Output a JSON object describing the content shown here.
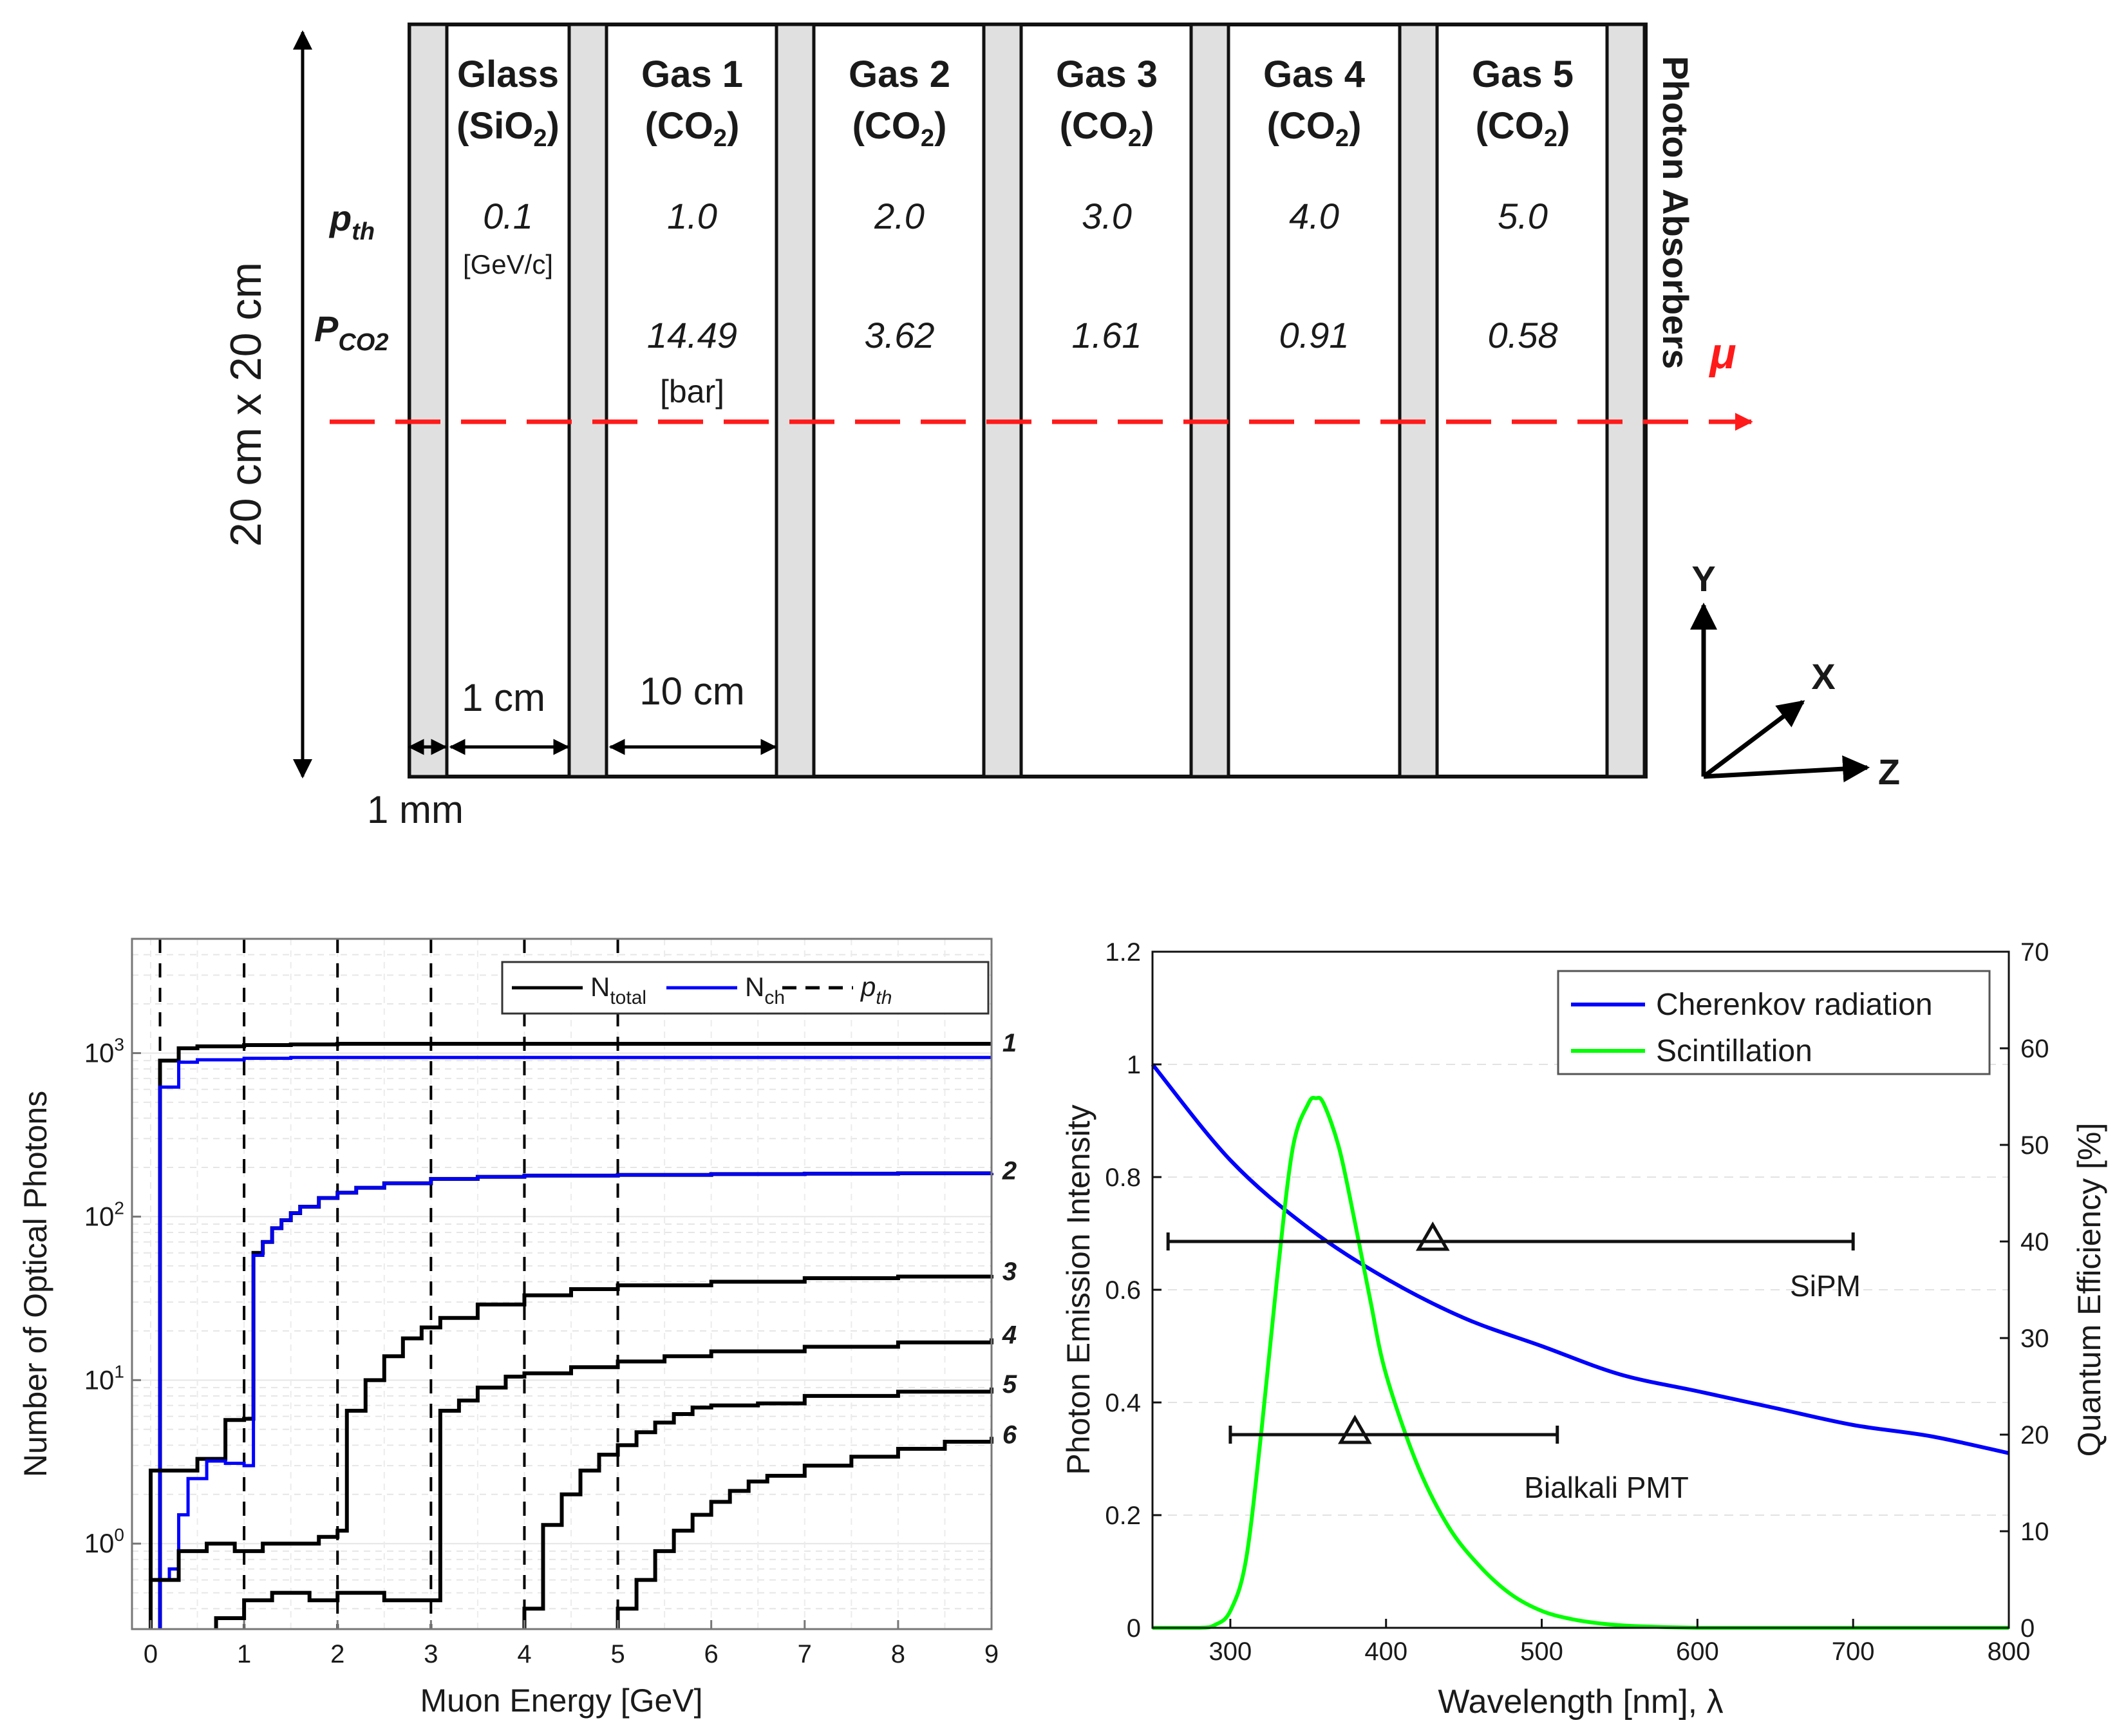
{
  "detector": {
    "height_label": "20 cm x 20 cm",
    "chambers": [
      {
        "name": "Glass",
        "medium": "(SiO",
        "sub": "2",
        "close": ")",
        "pth": "0.1",
        "pco2": ""
      },
      {
        "name": "Gas 1",
        "medium": "(CO",
        "sub": "2",
        "close": ")",
        "pth": "1.0",
        "pco2": "14.49"
      },
      {
        "name": "Gas 2",
        "medium": "(CO",
        "sub": "2",
        "close": ")",
        "pth": "2.0",
        "pco2": "3.62"
      },
      {
        "name": "Gas 3",
        "medium": "(CO",
        "sub": "2",
        "close": ")",
        "pth": "3.0",
        "pco2": "1.61"
      },
      {
        "name": "Gas 4",
        "medium": "(CO",
        "sub": "2",
        "close": ")",
        "pth": "4.0",
        "pco2": "0.91"
      },
      {
        "name": "Gas 5",
        "medium": "(CO",
        "sub": "2",
        "close": ")",
        "pth": "5.0",
        "pco2": "0.58"
      }
    ],
    "pth_label": "p",
    "pth_sub": "th",
    "pth_unit": "[GeV/c]",
    "pco2_label": "P",
    "pco2_sub": "CO2",
    "pco2_unit": "[bar]",
    "absorber_label": "Photon Absorbers",
    "muon_label": "μ",
    "dim_1cm": "1 cm",
    "dim_10cm": "10 cm",
    "dim_1mm": "1 mm",
    "axis_y": "Y",
    "axis_x": "X",
    "axis_z": "Z",
    "colors": {
      "wall": "#e0e0e0",
      "beam": "#ff1a1a"
    }
  },
  "chart_data": [
    {
      "type": "line",
      "scale": "log-y",
      "title": "",
      "xlabel": "Muon Energy [GeV]",
      "ylabel": "Number of Optical Photons",
      "xlim": [
        -0.2,
        9
      ],
      "ylim": [
        0.3,
        5000
      ],
      "xticks": [
        "0",
        "1",
        "2",
        "3",
        "4",
        "5",
        "6",
        "7",
        "8",
        "9"
      ],
      "yticks": [
        {
          "v": 1,
          "label": "10",
          "exp": "0"
        },
        {
          "v": 10,
          "label": "10",
          "exp": "1"
        },
        {
          "v": 100,
          "label": "10",
          "exp": "2"
        },
        {
          "v": 1000,
          "label": "10",
          "exp": "3"
        }
      ],
      "thresholds": [
        0.1,
        1.0,
        2.0,
        3.0,
        4.0,
        5.0
      ],
      "legend": [
        {
          "label": "N",
          "sub": "total",
          "color": "#000000",
          "dash": false
        },
        {
          "label": "N",
          "sub": "ch",
          "color": "#0000ff",
          "dash": false
        },
        {
          "label": "p",
          "sub": "th",
          "color": "#000000",
          "dash": true,
          "italic": true
        }
      ],
      "curve_labels": [
        "1",
        "2",
        "3",
        "4",
        "5",
        "6"
      ],
      "series": [
        {
          "name": "N_total 1",
          "color": "#000000",
          "x": [
            0.1,
            0.3,
            0.5,
            1,
            1.5,
            2,
            3,
            4,
            5,
            6,
            7,
            8,
            9
          ],
          "y": [
            900,
            1070,
            1100,
            1120,
            1130,
            1140,
            1140,
            1140,
            1140,
            1140,
            1140,
            1140,
            1140
          ]
        },
        {
          "name": "N_ch 1",
          "color": "#0000ff",
          "x": [
            0.1,
            0.3,
            0.5,
            1,
            1.5,
            2,
            3,
            4,
            5,
            6,
            7,
            8,
            9
          ],
          "y": [
            620,
            880,
            910,
            930,
            940,
            940,
            940,
            940,
            940,
            940,
            940,
            940,
            940
          ]
        },
        {
          "name": "N_total 2",
          "color": "#000000",
          "x": [
            0,
            0.5,
            0.8,
            1,
            1.1,
            1.2,
            1.3,
            1.4,
            1.5,
            1.6,
            1.8,
            2,
            2.2,
            2.5,
            3,
            3.5,
            4,
            5,
            6,
            7,
            8,
            9
          ],
          "y": [
            2.8,
            3.3,
            5.7,
            5.8,
            60,
            70,
            85,
            95,
            105,
            115,
            130,
            140,
            150,
            160,
            170,
            175,
            178,
            180,
            182,
            183,
            184,
            185
          ]
        },
        {
          "name": "N_ch 2",
          "color": "#0000ff",
          "x": [
            0,
            0.2,
            0.3,
            0.4,
            0.6,
            0.8,
            1,
            1.1,
            1.2,
            1.3,
            1.4,
            1.5,
            1.6,
            1.8,
            2,
            2.2,
            2.5,
            3,
            3.5,
            4,
            5,
            6,
            7,
            8,
            9
          ],
          "y": [
            0.6,
            0.7,
            1.5,
            2.5,
            3.2,
            3.1,
            3.0,
            58,
            70,
            85,
            95,
            105,
            115,
            130,
            140,
            150,
            160,
            170,
            175,
            178,
            180,
            182,
            183,
            184,
            185
          ]
        },
        {
          "name": "N_total 3",
          "color": "#000000",
          "x": [
            0,
            0.3,
            0.6,
            0.9,
            1.2,
            1.5,
            1.8,
            2,
            2.1,
            2.3,
            2.5,
            2.7,
            2.9,
            3.1,
            3.5,
            4,
            4.5,
            5,
            6,
            7,
            8,
            9
          ],
          "y": [
            0.6,
            0.9,
            1.0,
            0.9,
            1.0,
            1.0,
            1.1,
            1.2,
            6.5,
            10,
            14,
            18,
            21,
            24,
            29,
            33,
            36,
            38,
            40,
            42,
            43,
            44
          ]
        },
        {
          "name": "N_total 4",
          "color": "#000000",
          "x": [
            0.7,
            1,
            1.3,
            1.7,
            2,
            2.5,
            3,
            3.1,
            3.3,
            3.5,
            3.8,
            4,
            4.5,
            5,
            5.5,
            6,
            7,
            8,
            9
          ],
          "y": [
            0.35,
            0.45,
            0.5,
            0.45,
            0.5,
            0.45,
            0.45,
            6.5,
            7.5,
            9,
            10.5,
            11,
            12,
            13,
            14,
            15,
            16,
            17,
            18
          ]
        },
        {
          "name": "N_total 5",
          "color": "#000000",
          "x": [
            4,
            4.2,
            4.4,
            4.6,
            4.8,
            5,
            5.2,
            5.4,
            5.6,
            5.8,
            6,
            6.5,
            7,
            8,
            9
          ],
          "y": [
            0.4,
            1.3,
            2,
            2.8,
            3.5,
            4,
            4.8,
            5.5,
            6.2,
            6.8,
            7,
            7.2,
            8,
            8.5,
            9
          ]
        },
        {
          "name": "N_total 6",
          "color": "#000000",
          "x": [
            5,
            5.2,
            5.4,
            5.6,
            5.8,
            6,
            6.2,
            6.4,
            6.6,
            7,
            7.5,
            8,
            8.5,
            9
          ],
          "y": [
            0.4,
            0.6,
            0.9,
            1.2,
            1.5,
            1.8,
            2.1,
            2.4,
            2.6,
            3,
            3.4,
            3.8,
            4.2,
            4.5
          ]
        }
      ]
    },
    {
      "type": "line",
      "title": "",
      "xlabel": "Wavelength [nm], λ",
      "ylabel": "Photon Emission Intensity",
      "ylabel_right": "Quantum Efficiency [%]",
      "xlim": [
        250,
        800
      ],
      "ylim": [
        0,
        1.2
      ],
      "ylim_right": [
        0,
        70
      ],
      "xticks": [
        "300",
        "400",
        "500",
        "600",
        "700",
        "800"
      ],
      "yticks": [
        "0",
        "0.2",
        "0.4",
        "0.6",
        "0.8",
        "1",
        "1.2"
      ],
      "yticks_right": [
        "0",
        "10",
        "20",
        "30",
        "40",
        "50",
        "60",
        "70"
      ],
      "legend": [
        {
          "label": "Cherenkov radiation",
          "color": "#0000ff"
        },
        {
          "label": "Scintillation",
          "color": "#00ff00"
        }
      ],
      "series": [
        {
          "name": "Cherenkov radiation",
          "color": "#0000ff",
          "x": [
            250,
            300,
            350,
            400,
            450,
            500,
            550,
            600,
            650,
            700,
            750,
            800
          ],
          "y": [
            1.0,
            0.83,
            0.71,
            0.62,
            0.55,
            0.5,
            0.45,
            0.42,
            0.39,
            0.36,
            0.34,
            0.31
          ]
        },
        {
          "name": "Scintillation",
          "color": "#00ff00",
          "x": [
            250,
            280,
            290,
            300,
            310,
            320,
            330,
            340,
            350,
            355,
            360,
            370,
            380,
            390,
            400,
            420,
            440,
            460,
            480,
            500,
            520,
            540,
            560,
            600,
            650,
            700,
            800
          ],
          "y": [
            0,
            0,
            0.005,
            0.03,
            0.12,
            0.35,
            0.62,
            0.85,
            0.93,
            0.94,
            0.93,
            0.85,
            0.72,
            0.58,
            0.45,
            0.29,
            0.18,
            0.11,
            0.06,
            0.03,
            0.015,
            0.007,
            0.003,
            0,
            0,
            0,
            0
          ]
        }
      ],
      "detectors": [
        {
          "name": "SiPM",
          "range": [
            260,
            700
          ],
          "peak_nm": 430,
          "qe_percent": 40
        },
        {
          "name": "Bialkali PMT",
          "range": [
            300,
            510
          ],
          "peak_nm": 380,
          "qe_percent": 20
        }
      ]
    }
  ]
}
